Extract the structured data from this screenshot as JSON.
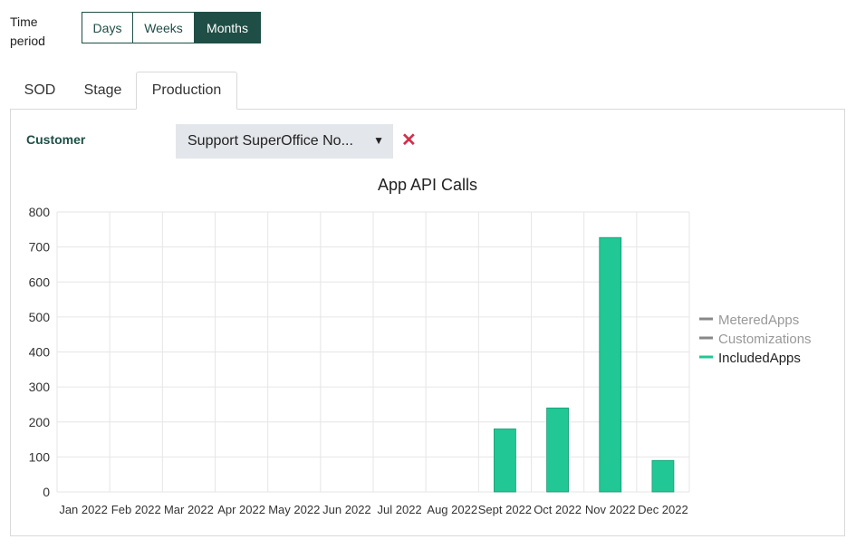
{
  "time_period": {
    "label": "Time period",
    "options": [
      {
        "label": "Days",
        "active": false
      },
      {
        "label": "Weeks",
        "active": false
      },
      {
        "label": "Months",
        "active": true
      }
    ]
  },
  "tabs": [
    {
      "label": "SOD",
      "active": false
    },
    {
      "label": "Stage",
      "active": false
    },
    {
      "label": "Production",
      "active": true
    }
  ],
  "customer": {
    "label": "Customer",
    "selected": "Support SuperOffice No...",
    "clear_icon": "close-icon"
  },
  "colors": {
    "accent": "#1f4e46",
    "bar": "#21c795",
    "legend_inactive": "#888888",
    "clear": "#d0314a"
  },
  "chart_data": {
    "type": "bar",
    "title": "App API Calls",
    "categories": [
      "Jan 2022",
      "Feb 2022",
      "Mar 2022",
      "Apr 2022",
      "May 2022",
      "Jun 2022",
      "Jul 2022",
      "Aug 2022",
      "Sept 2022",
      "Oct 2022",
      "Nov 2022",
      "Dec 2022"
    ],
    "series": [
      {
        "name": "MeteredApps",
        "values": [
          0,
          0,
          0,
          0,
          0,
          0,
          0,
          0,
          0,
          0,
          0,
          0
        ],
        "hidden": true
      },
      {
        "name": "Customizations",
        "values": [
          0,
          0,
          0,
          0,
          0,
          0,
          0,
          0,
          0,
          0,
          0,
          0
        ],
        "hidden": true
      },
      {
        "name": "IncludedApps",
        "values": [
          0,
          0,
          0,
          0,
          0,
          0,
          0,
          0,
          180,
          240,
          727,
          90
        ],
        "hidden": false
      }
    ],
    "ylim": [
      0,
      800
    ],
    "yticks": [
      0,
      100,
      200,
      300,
      400,
      500,
      600,
      700,
      800
    ],
    "grid": true,
    "legend": "right"
  }
}
